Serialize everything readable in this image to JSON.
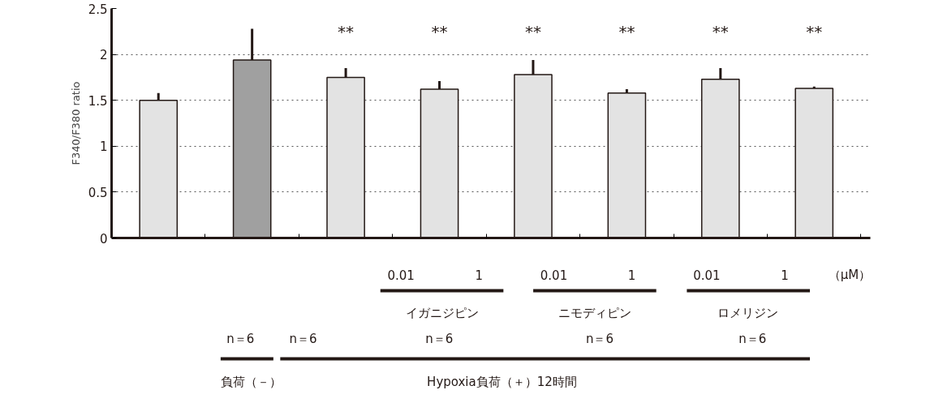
{
  "chart_data": {
    "type": "bar",
    "ylabel": "F340/F380 ratio",
    "categories": [
      null,
      null,
      null,
      null,
      null,
      null,
      null,
      null
    ],
    "values": [
      1.5,
      1.94,
      1.75,
      1.62,
      1.78,
      1.58,
      1.73,
      1.63
    ],
    "errors": [
      [
        1.5,
        1.58
      ],
      [
        1.94,
        2.28
      ],
      [
        1.75,
        1.85
      ],
      [
        1.62,
        1.71
      ],
      [
        1.78,
        1.94
      ],
      [
        1.58,
        1.62
      ],
      [
        1.73,
        1.85
      ],
      [
        1.63,
        1.65
      ]
    ],
    "colors": [
      "#e3e3e3",
      "#a0a0a0",
      "#e3e3e3",
      "#e3e3e3",
      "#e3e3e3",
      "#e3e3e3",
      "#e3e3e3",
      "#e3e3e3"
    ],
    "ylim": [
      0,
      2.5
    ],
    "yticks": [
      0,
      0.5,
      1,
      1.5,
      2,
      2.5
    ],
    "grid": "y",
    "tick_labels": "y",
    "annotations": [
      "**",
      "**",
      "**",
      "**",
      "**",
      "**",
      "0.01",
      "1",
      "0.01",
      "1",
      "0.01",
      "1",
      "（μM）",
      "イガニジピン",
      "ニモディピン",
      "ロメリジン",
      "n＝6",
      "n＝6",
      "n＝6",
      "n＝6",
      "n＝6",
      "負荷（－）",
      "Hypoxia負荷（＋）12時間"
    ]
  }
}
